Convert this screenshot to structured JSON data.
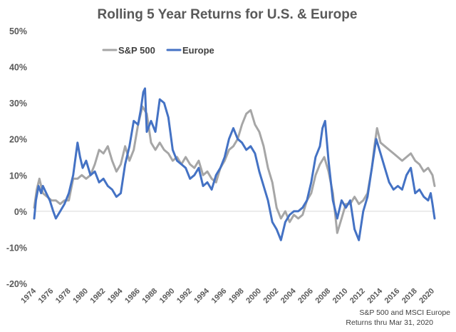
{
  "chart_data": {
    "type": "line",
    "title": "Rolling 5 Year Returns for U.S. & Europe",
    "xlabel": "",
    "ylabel": "",
    "ylim": [
      -20,
      50
    ],
    "xlim": [
      1974,
      2020.25
    ],
    "y_tick_labels": [
      "50%",
      "40%",
      "30%",
      "20%",
      "10%",
      "0%",
      "-10%",
      "-20%"
    ],
    "y_ticks": [
      50,
      40,
      30,
      20,
      10,
      0,
      -10,
      -20
    ],
    "x_tick_labels": [
      "1974",
      "1976",
      "1978",
      "1980",
      "1982",
      "1984",
      "1986",
      "1988",
      "1990",
      "1992",
      "1994",
      "1996",
      "1998",
      "2000",
      "2002",
      "2004",
      "2006",
      "2008",
      "2010",
      "2012",
      "2014",
      "2016",
      "2018",
      "2020"
    ],
    "x_ticks": [
      1974,
      1976,
      1978,
      1980,
      1982,
      1984,
      1986,
      1988,
      1990,
      1992,
      1994,
      1996,
      1998,
      2000,
      2002,
      2004,
      2006,
      2008,
      2010,
      2012,
      2014,
      2016,
      2018,
      2020
    ],
    "legend_position": "top-left",
    "series": [
      {
        "name": "S&P 500",
        "color": "#a6a6a6",
        "x": [
          1974.0,
          1974.3,
          1974.6,
          1975.0,
          1975.5,
          1976.0,
          1976.5,
          1977.0,
          1977.5,
          1978.0,
          1978.5,
          1979.0,
          1979.5,
          1980.0,
          1980.5,
          1981.0,
          1981.5,
          1982.0,
          1982.5,
          1983.0,
          1983.5,
          1984.0,
          1984.5,
          1985.0,
          1985.5,
          1986.0,
          1986.5,
          1987.0,
          1987.5,
          1988.0,
          1988.5,
          1989.0,
          1989.5,
          1990.0,
          1990.5,
          1991.0,
          1991.5,
          1992.0,
          1992.5,
          1993.0,
          1993.5,
          1994.0,
          1994.5,
          1995.0,
          1995.5,
          1996.0,
          1996.5,
          1997.0,
          1997.5,
          1998.0,
          1998.5,
          1999.0,
          1999.5,
          2000.0,
          2000.5,
          2001.0,
          2001.5,
          2002.0,
          2002.5,
          2003.0,
          2003.5,
          2004.0,
          2004.5,
          2005.0,
          2005.5,
          2006.0,
          2006.5,
          2007.0,
          2007.5,
          2008.0,
          2008.5,
          2009.0,
          2009.5,
          2010.0,
          2010.5,
          2011.0,
          2011.5,
          2012.0,
          2012.5,
          2013.0,
          2013.3,
          2013.6,
          2014.0,
          2014.5,
          2015.0,
          2015.5,
          2016.0,
          2016.5,
          2017.0,
          2017.5,
          2018.0,
          2018.5,
          2019.0,
          2019.5,
          2020.0,
          2020.25
        ],
        "values": [
          1,
          6,
          9,
          5,
          4,
          3,
          3,
          2,
          3,
          3,
          9,
          9,
          10,
          9,
          10,
          13,
          17,
          16,
          18,
          14,
          11,
          13,
          18,
          14,
          17,
          24,
          29,
          27,
          19,
          17,
          19,
          17,
          16,
          14,
          15,
          13,
          15,
          13,
          12,
          14,
          10,
          11,
          9,
          8,
          12,
          14,
          17,
          18,
          20,
          24,
          27,
          28,
          24,
          22,
          18,
          12,
          8,
          1,
          -2,
          0,
          -3,
          -1,
          -2,
          -1,
          3,
          5,
          10,
          13,
          15,
          11,
          5,
          -6,
          -2,
          2,
          2,
          4,
          2,
          3,
          5,
          12,
          18,
          23,
          19,
          18,
          17,
          16,
          15,
          14,
          15,
          16,
          14,
          13,
          11,
          12,
          10,
          7
        ]
      },
      {
        "name": "Europe",
        "color": "#4472c4",
        "x": [
          1974.0,
          1974.2,
          1974.5,
          1974.8,
          1975.0,
          1975.4,
          1975.8,
          1976.2,
          1976.5,
          1977.0,
          1977.5,
          1978.0,
          1978.5,
          1979.0,
          1979.3,
          1979.6,
          1980.0,
          1980.5,
          1981.0,
          1981.5,
          1982.0,
          1982.5,
          1983.0,
          1983.5,
          1984.0,
          1984.5,
          1985.0,
          1985.5,
          1986.0,
          1986.3,
          1986.6,
          1986.8,
          1987.0,
          1987.5,
          1988.0,
          1988.5,
          1989.0,
          1989.5,
          1990.0,
          1990.5,
          1991.0,
          1991.5,
          1992.0,
          1992.5,
          1993.0,
          1993.5,
          1994.0,
          1994.5,
          1995.0,
          1995.5,
          1996.0,
          1996.5,
          1997.0,
          1997.5,
          1998.0,
          1998.5,
          1999.0,
          1999.5,
          2000.0,
          2000.5,
          2001.0,
          2001.5,
          2002.0,
          2002.5,
          2003.0,
          2003.5,
          2004.0,
          2004.5,
          2005.0,
          2005.5,
          2006.0,
          2006.5,
          2007.0,
          2007.3,
          2007.6,
          2008.0,
          2008.5,
          2009.0,
          2009.5,
          2010.0,
          2010.5,
          2011.0,
          2011.5,
          2012.0,
          2012.5,
          2013.0,
          2013.5,
          2014.0,
          2014.5,
          2015.0,
          2015.5,
          2016.0,
          2016.5,
          2017.0,
          2017.5,
          2018.0,
          2018.5,
          2019.0,
          2019.5,
          2019.8,
          2020.0,
          2020.25
        ],
        "values": [
          -2,
          3,
          7,
          5,
          7,
          5,
          3,
          0,
          -2,
          0,
          2,
          5,
          10,
          19,
          15,
          12,
          14,
          10,
          11,
          8,
          9,
          7,
          6,
          4,
          5,
          13,
          18,
          25,
          24,
          28,
          33,
          34,
          22,
          25,
          22,
          31,
          30,
          26,
          17,
          14,
          13,
          12,
          9,
          10,
          12,
          7,
          8,
          6,
          10,
          12,
          15,
          20,
          23,
          20,
          19,
          17,
          18,
          16,
          11,
          7,
          3,
          -3,
          -5,
          -8,
          -3,
          -1,
          0,
          0,
          1,
          3,
          8,
          15,
          18,
          23,
          25,
          14,
          3,
          -2,
          3,
          1,
          3,
          -5,
          -8,
          0,
          4,
          12,
          20,
          16,
          12,
          8,
          6,
          7,
          6,
          10,
          12,
          5,
          6,
          4,
          3,
          5,
          2,
          -2
        ]
      }
    ],
    "annotation_lines": [
      "S&P 500 and MSCI Europe",
      "Returns thru Mar 31, 2020"
    ]
  }
}
